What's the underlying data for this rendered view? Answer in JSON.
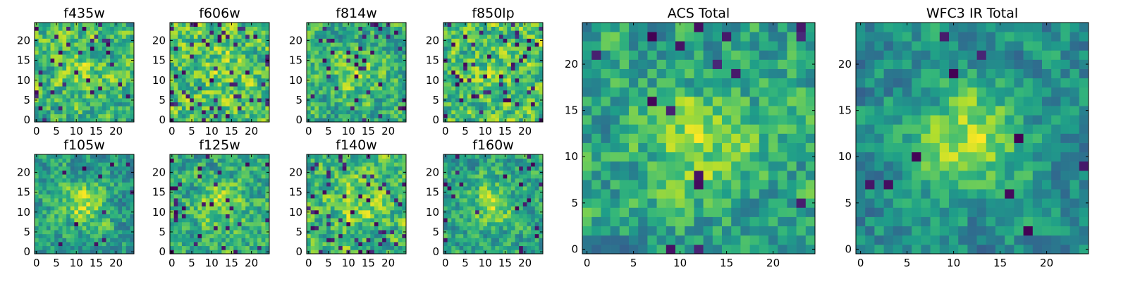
{
  "chart_data": [
    {
      "type": "heatmap",
      "title": "f435w",
      "cmap": "viridis",
      "seed": 11,
      "blob": 0.15,
      "speck": 0.06,
      "xticks": [
        0,
        5,
        10,
        15,
        20
      ],
      "yticks": [
        0,
        5,
        10,
        15,
        20
      ],
      "xlim": [
        0,
        24
      ],
      "ylim": [
        0,
        24
      ],
      "grid": false
    },
    {
      "type": "heatmap",
      "title": "f606w",
      "cmap": "viridis",
      "seed": 23,
      "blob": 0.1,
      "speck": 0.08,
      "xticks": [
        0,
        5,
        10,
        15,
        20
      ],
      "yticks": [
        0,
        5,
        10,
        15,
        20
      ],
      "xlim": [
        0,
        24
      ],
      "ylim": [
        0,
        24
      ],
      "grid": false
    },
    {
      "type": "heatmap",
      "title": "f814w",
      "cmap": "viridis",
      "seed": 37,
      "blob": 0.2,
      "speck": 0.07,
      "xticks": [
        0,
        5,
        10,
        15,
        20
      ],
      "yticks": [
        0,
        5,
        10,
        15,
        20
      ],
      "xlim": [
        0,
        24
      ],
      "ylim": [
        0,
        24
      ],
      "grid": false
    },
    {
      "type": "heatmap",
      "title": "f850lp",
      "cmap": "viridis",
      "seed": 41,
      "blob": 0.1,
      "speck": 0.08,
      "xticks": [
        0,
        5,
        10,
        15,
        20
      ],
      "yticks": [
        0,
        5,
        10,
        15,
        20
      ],
      "xlim": [
        0,
        24
      ],
      "ylim": [
        0,
        24
      ],
      "grid": false
    },
    {
      "type": "heatmap",
      "title": "f105w",
      "cmap": "viridis",
      "seed": 53,
      "blob": 0.35,
      "speck": 0.02,
      "xticks": [
        0,
        5,
        10,
        15,
        20
      ],
      "yticks": [
        0,
        5,
        10,
        15,
        20
      ],
      "xlim": [
        0,
        24
      ],
      "ylim": [
        0,
        24
      ],
      "grid": false
    },
    {
      "type": "heatmap",
      "title": "f125w",
      "cmap": "viridis",
      "seed": 61,
      "blob": 0.25,
      "speck": 0.05,
      "xticks": [
        0,
        5,
        10,
        15,
        20
      ],
      "yticks": [
        0,
        5,
        10,
        15,
        20
      ],
      "xlim": [
        0,
        24
      ],
      "ylim": [
        0,
        24
      ],
      "grid": false
    },
    {
      "type": "heatmap",
      "title": "f140w",
      "cmap": "viridis",
      "seed": 73,
      "blob": 0.2,
      "speck": 0.07,
      "xticks": [
        0,
        5,
        10,
        15,
        20
      ],
      "yticks": [
        0,
        5,
        10,
        15,
        20
      ],
      "xlim": [
        0,
        24
      ],
      "ylim": [
        0,
        24
      ],
      "grid": false
    },
    {
      "type": "heatmap",
      "title": "f160w",
      "cmap": "viridis",
      "seed": 89,
      "blob": 0.3,
      "speck": 0.04,
      "xticks": [
        0,
        5,
        10,
        15,
        20
      ],
      "yticks": [
        0,
        5,
        10,
        15,
        20
      ],
      "xlim": [
        0,
        24
      ],
      "ylim": [
        0,
        24
      ],
      "grid": false
    },
    {
      "type": "heatmap",
      "title": "ACS Total",
      "cmap": "viridis",
      "seed": 97,
      "blob": 0.3,
      "speck": 0.03,
      "xticks": [
        0,
        5,
        10,
        15,
        20
      ],
      "yticks": [
        0,
        5,
        10,
        15,
        20
      ],
      "xlim": [
        0,
        24
      ],
      "ylim": [
        0,
        24
      ],
      "grid": false
    },
    {
      "type": "heatmap",
      "title": "WFC3 IR Total",
      "cmap": "viridis",
      "seed": 101,
      "blob": 0.55,
      "speck": 0.015,
      "xticks": [
        0,
        5,
        10,
        15,
        20
      ],
      "yticks": [
        0,
        5,
        10,
        15,
        20
      ],
      "xlim": [
        0,
        24
      ],
      "ylim": [
        0,
        24
      ],
      "grid": false
    }
  ]
}
